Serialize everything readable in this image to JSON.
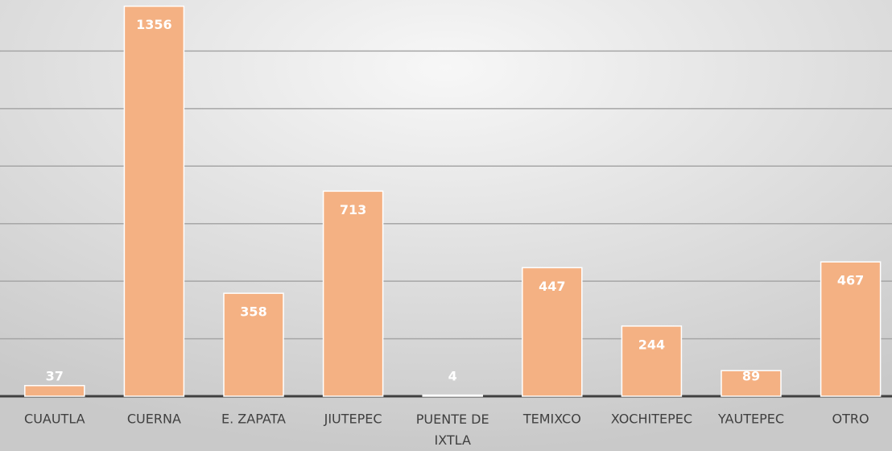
{
  "chart_data": {
    "type": "bar",
    "categories": [
      "CUAUTLA",
      "CUERNA",
      "E. ZAPATA",
      "JIUTEPEC",
      "PUENTE DE IXTLA",
      "TEMIXCO",
      "XOCHITEPEC",
      "YAUTEPEC",
      "OTRO"
    ],
    "values": [
      37,
      1356,
      358,
      713,
      4,
      447,
      244,
      89,
      467
    ],
    "color": "#f4b183",
    "ylim": [
      0,
      1400
    ],
    "yticks": [
      0,
      200,
      400,
      600,
      800,
      1000,
      1200
    ],
    "grid": true
  }
}
